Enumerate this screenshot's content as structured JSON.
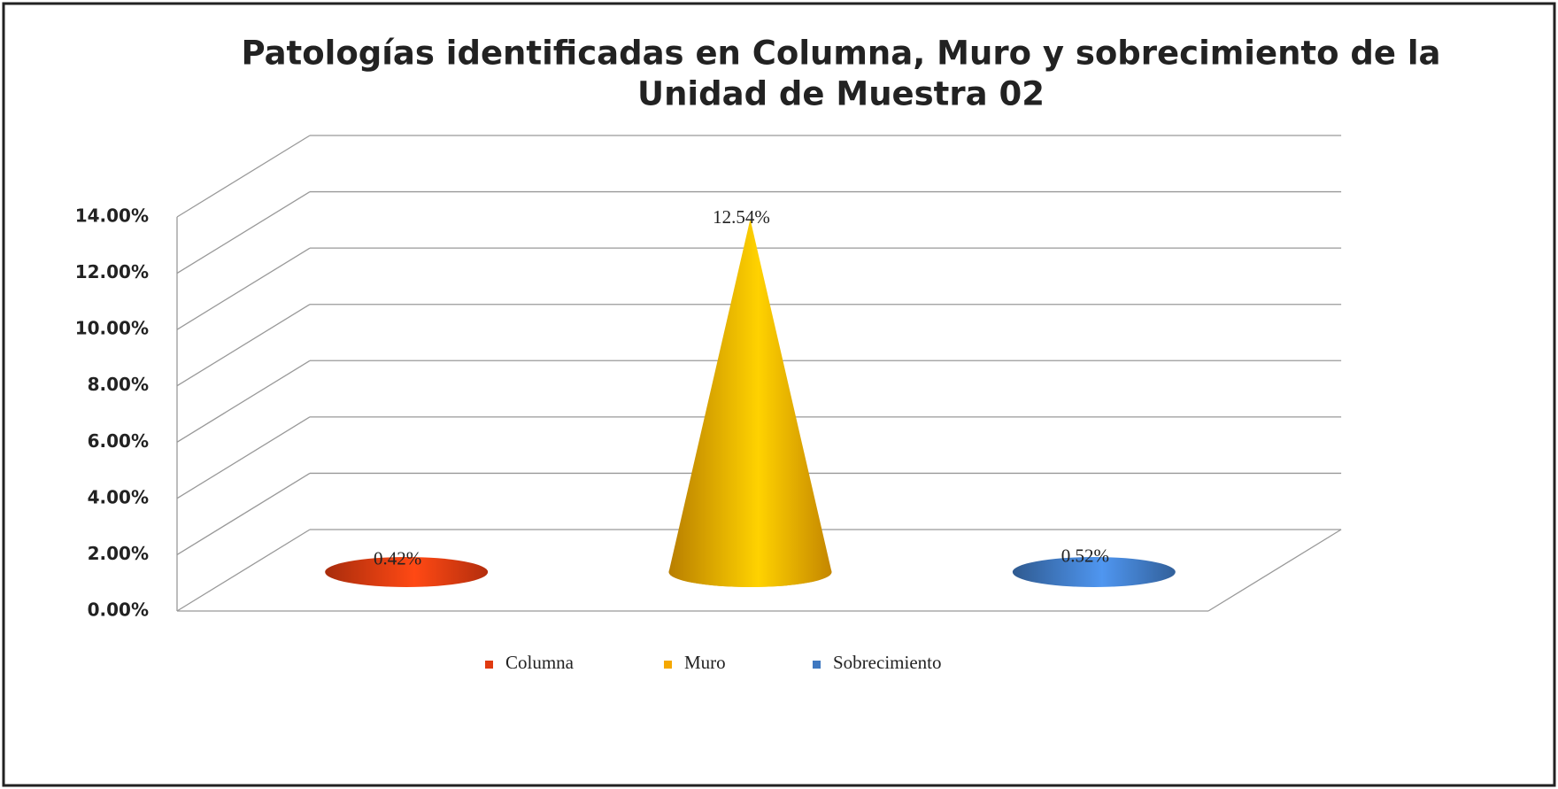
{
  "chart_data": {
    "type": "bar",
    "bar_shape": "cone",
    "title": [
      "Patologías  identificadas en Columna, Muro y sobrecimiento de la",
      "Unidad  de Muestra  02"
    ],
    "categories": [
      "Columna",
      "Muro",
      "Sobrecimiento"
    ],
    "values": [
      0.42,
      12.54,
      0.52
    ],
    "value_labels": [
      "0.42%",
      "12.54%",
      "0.52%"
    ],
    "colors": [
      "#e03a10",
      "#f5a800",
      "#3f78c0"
    ],
    "ylim": [
      0,
      14
    ],
    "yticks": [
      {
        "value": 0,
        "label": "0.00%"
      },
      {
        "value": 2,
        "label": "2.00%"
      },
      {
        "value": 4,
        "label": "4.00%"
      },
      {
        "value": 6,
        "label": "6.00%"
      },
      {
        "value": 8,
        "label": "8.00%"
      },
      {
        "value": 10,
        "label": "10.00%"
      },
      {
        "value": 12,
        "label": "12.00%"
      },
      {
        "value": 14,
        "label": "14.00%"
      }
    ],
    "grid": true,
    "legend": "bottom"
  }
}
